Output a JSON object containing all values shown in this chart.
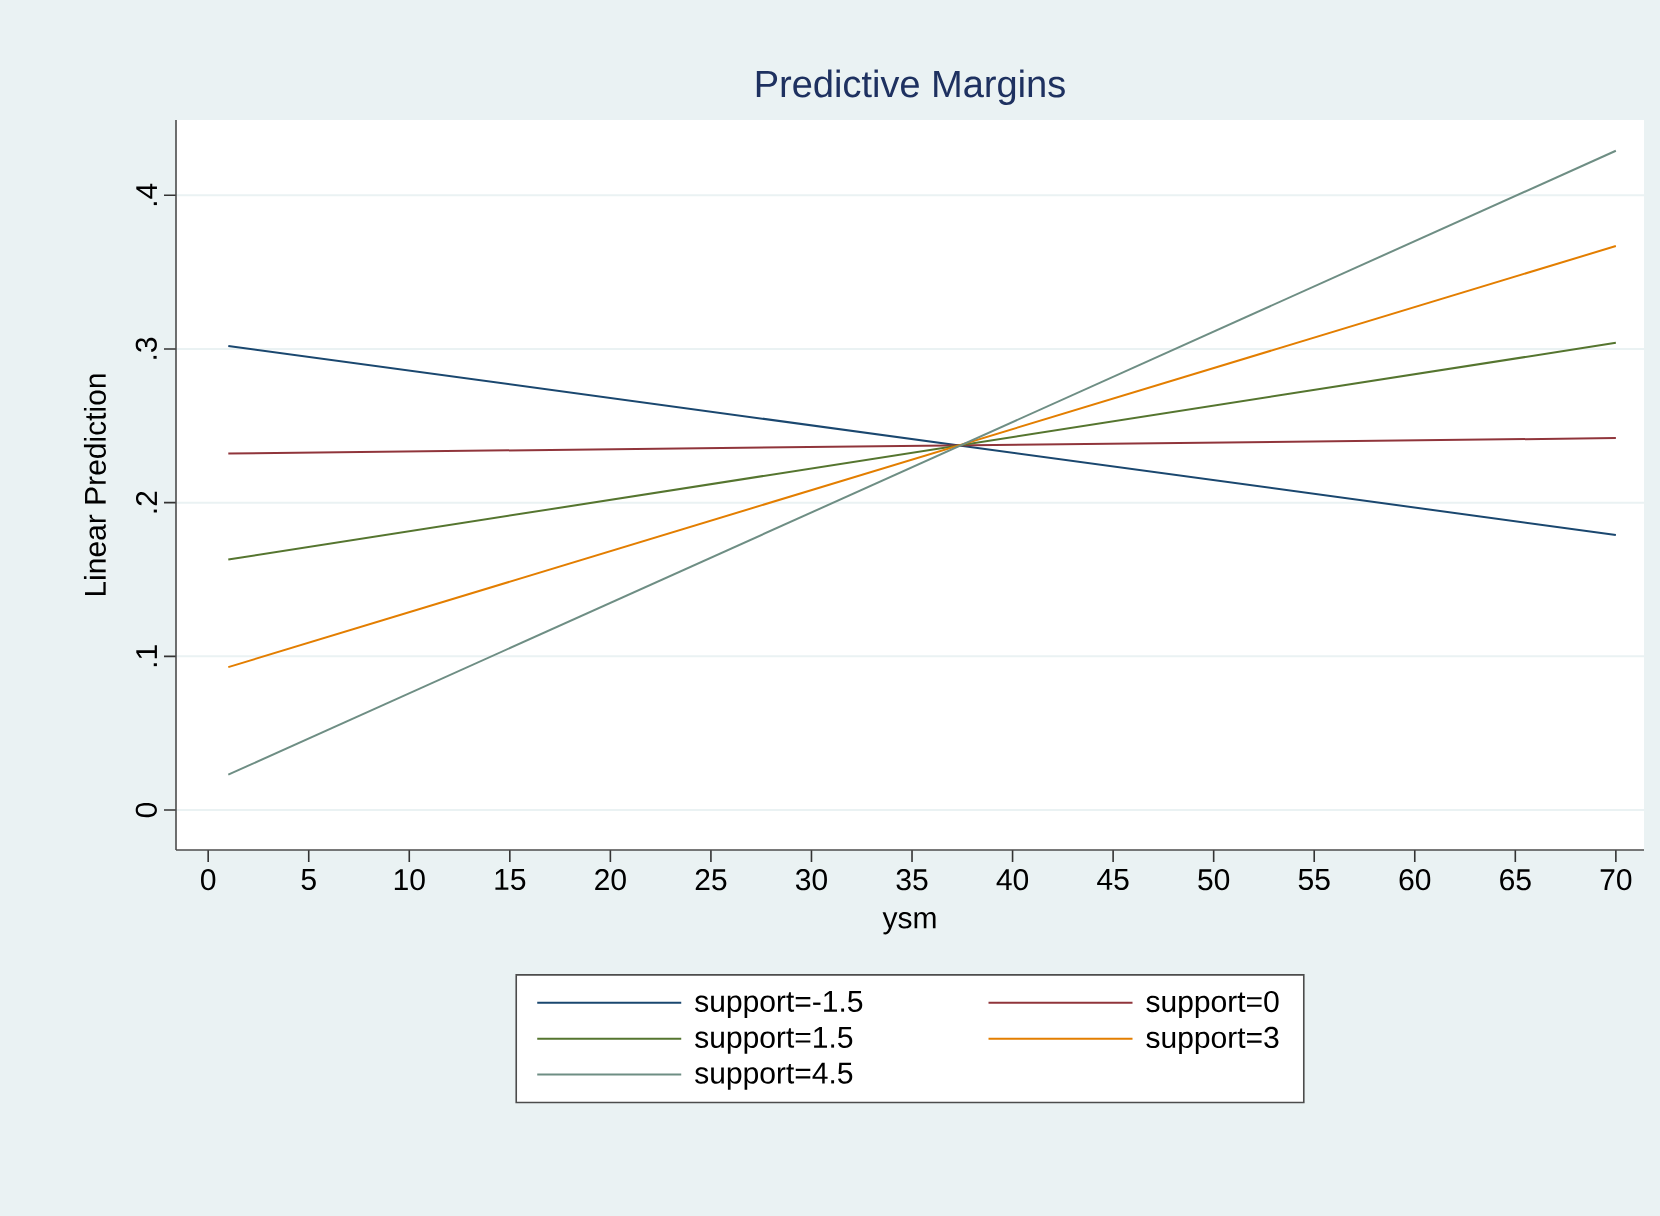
{
  "chart_data": {
    "type": "line",
    "title": "Predictive Margins",
    "xlabel": "ysm",
    "ylabel": "Linear Prediction",
    "x": [
      1,
      70
    ],
    "series": [
      {
        "name": "support=-1.5",
        "color": "#1a476f",
        "values": [
          0.302,
          0.179
        ]
      },
      {
        "name": "support=0",
        "color": "#90353b",
        "values": [
          0.232,
          0.242
        ]
      },
      {
        "name": "support=1.5",
        "color": "#55752f",
        "values": [
          0.163,
          0.304
        ]
      },
      {
        "name": "support=3",
        "color": "#e37e00",
        "values": [
          0.093,
          0.367
        ]
      },
      {
        "name": "support=4.5",
        "color": "#6e8e84",
        "values": [
          0.023,
          0.429
        ]
      }
    ],
    "xlim": [
      -1.6,
      71.4
    ],
    "ylim": [
      -0.026,
      0.449
    ],
    "xticks": [
      0,
      5,
      10,
      15,
      20,
      25,
      30,
      35,
      40,
      45,
      50,
      55,
      60,
      65,
      70
    ],
    "yticks": [
      0,
      {
        "value": 0.1,
        "label": ".1"
      },
      {
        "value": 0.2,
        "label": ".2"
      },
      {
        "value": 0.3,
        "label": ".3"
      },
      {
        "value": 0.4,
        "label": ".4"
      }
    ],
    "grid": "y",
    "legend": "bottom",
    "marker": "none",
    "line_style": "solid"
  }
}
